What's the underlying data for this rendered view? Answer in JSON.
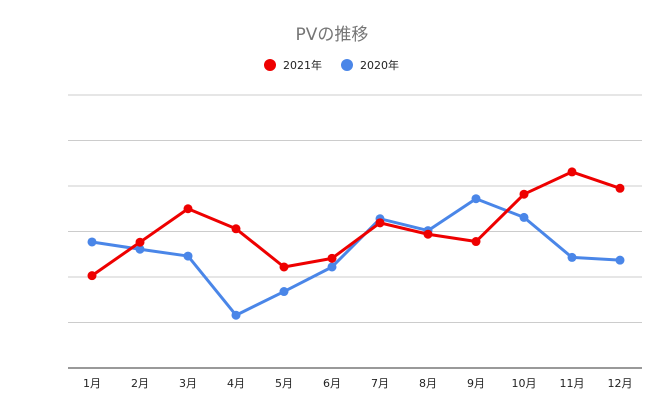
{
  "chart_data": {
    "type": "line",
    "title": "PVの推移",
    "xlabel": "",
    "ylabel": "",
    "categories": [
      "1月",
      "2月",
      "3月",
      "4月",
      "5月",
      "6月",
      "7月",
      "8月",
      "9月",
      "10月",
      "11月",
      "12月"
    ],
    "series": [
      {
        "name": "2021年",
        "color": "#ee0000",
        "values": [
          20.6,
          35.3,
          50.0,
          41.2,
          24.4,
          28.2,
          43.8,
          38.8,
          35.6,
          56.4,
          66.2,
          59.0
        ]
      },
      {
        "name": "2020年",
        "color": "#4a86e8",
        "values": [
          35.4,
          32.2,
          29.2,
          3.2,
          13.6,
          24.4,
          45.6,
          40.4,
          54.4,
          46.2,
          28.6,
          27.4
        ]
      }
    ],
    "ylim": [
      -20,
      100
    ],
    "y_ticks_labeled": false,
    "grid": true,
    "legend_position": "top"
  }
}
